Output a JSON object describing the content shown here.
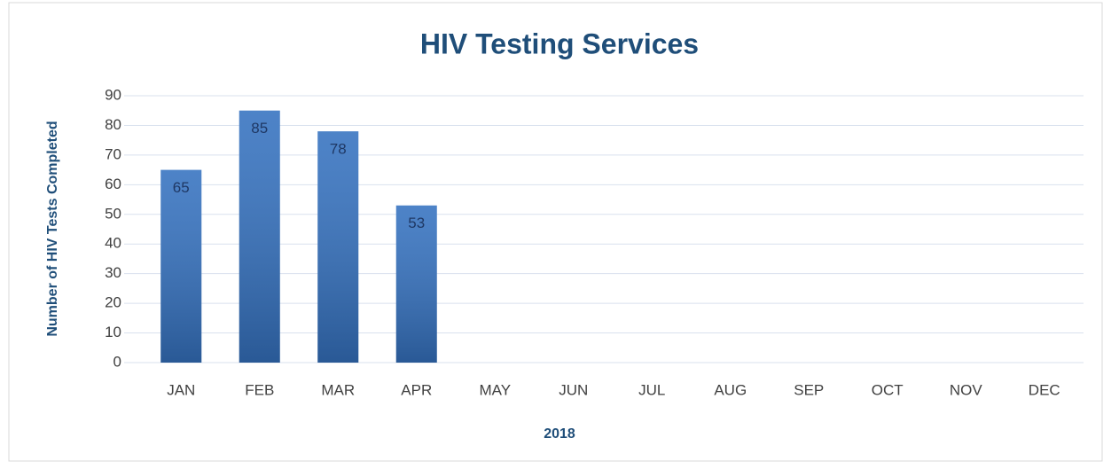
{
  "chart_data": {
    "type": "bar",
    "title": "HIV Testing Services",
    "x_label": "2018",
    "y_label": "Number of HIV Tests Completed",
    "categories": [
      "JAN",
      "FEB",
      "MAR",
      "APR",
      "MAY",
      "JUN",
      "JUL",
      "AUG",
      "SEP",
      "OCT",
      "NOV",
      "DEC"
    ],
    "values": [
      65,
      85,
      78,
      53,
      null,
      null,
      null,
      null,
      null,
      null,
      null,
      null
    ],
    "color": "#3572c0",
    "ylim": [
      0,
      90
    ],
    "yticks": [
      0,
      10,
      20,
      30,
      40,
      50,
      60,
      70,
      80,
      90
    ],
    "grid": true
  }
}
